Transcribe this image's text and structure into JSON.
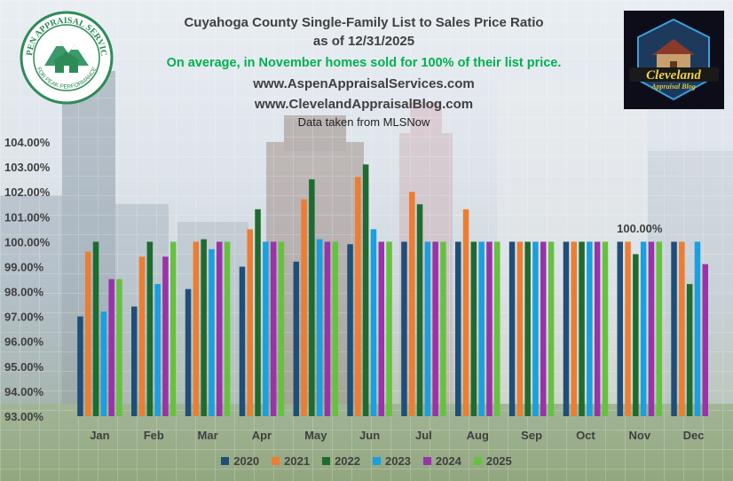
{
  "header": {
    "title_line1": "Cuyahoga County Single-Family List to Sales Price Ratio",
    "title_line2": "as of 12/31/2025",
    "highlight": "On average, in November homes sold for 100% of their list price.",
    "site1": "www.AspenAppraisalServices.com",
    "site2": "www.ClevelandAppraisalBlog.com",
    "source": "Data taken from MLSNow",
    "highlight_color": "#00b050"
  },
  "logos": {
    "left": {
      "top_text": "ASPEN APPRAISAL SERVICES",
      "bottom_text": "FOR PEAK PERFORMANCE",
      "icon": "mountain-house-emblem"
    },
    "right": {
      "line1": "Cleveland",
      "line2": "Appraisal Blog",
      "icon": "house-badge"
    }
  },
  "chart_data": {
    "type": "bar",
    "categories": [
      "Jan",
      "Feb",
      "Mar",
      "Apr",
      "May",
      "Jun",
      "Jul",
      "Aug",
      "Sep",
      "Oct",
      "Nov",
      "Dec"
    ],
    "series": [
      {
        "name": "2020",
        "color": "#1f4e79",
        "values": [
          97.0,
          97.4,
          98.1,
          99.0,
          99.2,
          99.9,
          100.0,
          100.0,
          100.0,
          100.0,
          100.0,
          100.0
        ]
      },
      {
        "name": "2021",
        "color": "#ed7d31",
        "values": [
          99.6,
          99.4,
          100.0,
          100.5,
          101.7,
          102.6,
          102.0,
          101.3,
          100.0,
          100.0,
          100.0,
          100.0
        ]
      },
      {
        "name": "2022",
        "color": "#1e6b30",
        "values": [
          100.0,
          100.0,
          100.1,
          101.3,
          102.5,
          103.1,
          101.5,
          100.0,
          100.0,
          100.0,
          99.5,
          98.3
        ]
      },
      {
        "name": "2023",
        "color": "#1a9fe0",
        "values": [
          97.2,
          98.3,
          99.7,
          100.0,
          100.1,
          100.5,
          100.0,
          100.0,
          100.0,
          100.0,
          100.0,
          100.0
        ]
      },
      {
        "name": "2024",
        "color": "#9933a8",
        "values": [
          98.5,
          99.4,
          100.0,
          100.0,
          100.0,
          100.0,
          100.0,
          100.0,
          100.0,
          100.0,
          100.0,
          99.1
        ]
      },
      {
        "name": "2025",
        "color": "#66c140",
        "values": [
          98.5,
          100.0,
          100.0,
          100.0,
          100.0,
          100.0,
          100.0,
          100.0,
          100.0,
          100.0,
          100.0,
          null
        ]
      }
    ],
    "yticks": [
      "104.00%",
      "103.00%",
      "102.00%",
      "101.00%",
      "100.00%",
      "99.00%",
      "98.00%",
      "97.00%",
      "96.00%",
      "95.00%",
      "94.00%",
      "93.00%"
    ],
    "ylim": [
      93,
      104.5
    ],
    "annotations": [
      {
        "category": "Nov",
        "text": "100.00%"
      }
    ],
    "legend_position": "bottom",
    "grid": false
  }
}
